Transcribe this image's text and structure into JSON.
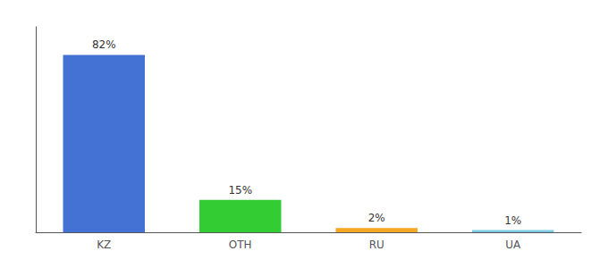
{
  "chart_data": {
    "type": "bar",
    "categories": [
      "KZ",
      "OTH",
      "RU",
      "UA"
    ],
    "values": [
      82,
      15,
      2,
      1
    ],
    "value_labels": [
      "82%",
      "15%",
      "2%",
      "1%"
    ],
    "colors": [
      "#4472d4",
      "#33cc33",
      "#f5a623",
      "#7ec8e3"
    ],
    "ylim": [
      0,
      95
    ],
    "data_labels": true,
    "tick_labels": "x",
    "grid": false
  }
}
